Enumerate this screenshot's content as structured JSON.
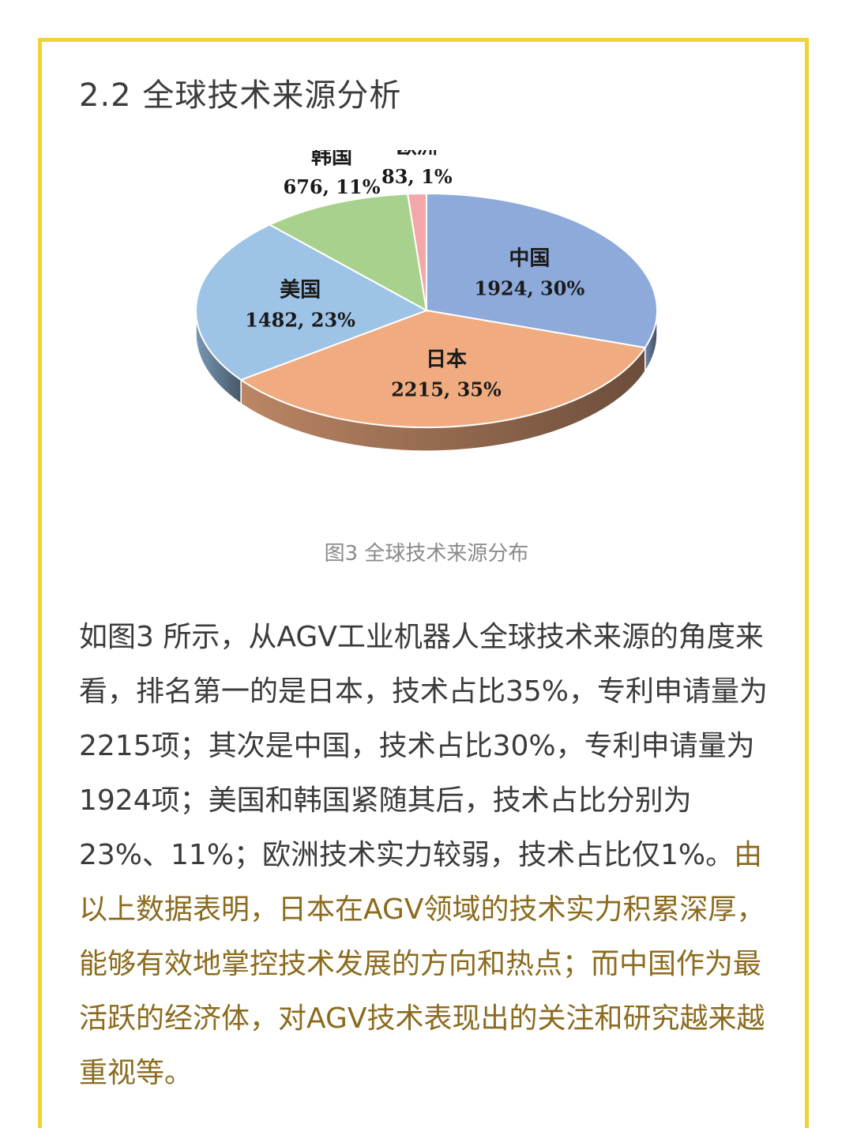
{
  "section": {
    "title": "2.2 全球技术来源分析"
  },
  "figure": {
    "caption": "图3  全球技术来源分布"
  },
  "body": {
    "plain_text": "如图3 所示，从AGV工业机器人全球技术来源的角度来看，排名第一的是日本，技术占比35%，专利申请量为2215项；其次是中国，技术占比30%，专利申请量为1924项；美国和韩国紧随其后，技术占比分别为23%、11%；欧洲技术实力较弱，技术占比仅1%。",
    "highlight_text": "由以上数据表明，日本在AGV领域的技术实力积累深厚，能够有效地掌控技术发展的方向和热点；而中国作为最活跃的经济体，对AGV技术表现出的关注和研究越来越重视等。"
  },
  "colors": {
    "frame_border": "#f2d335",
    "highlight": "#8c6b1f"
  },
  "chart_data": {
    "type": "pie",
    "title": "",
    "style": "3d",
    "slices": [
      {
        "name": "中国",
        "value": 1924,
        "percent": "30%",
        "label": "1924, 30%",
        "color": "#8eaadb"
      },
      {
        "name": "日本",
        "value": 2215,
        "percent": "35%",
        "label": "2215, 35%",
        "color": "#f0ac80"
      },
      {
        "name": "美国",
        "value": 1482,
        "percent": "23%",
        "label": "1482, 23%",
        "color": "#9dc3e6"
      },
      {
        "name": "韩国",
        "value": 676,
        "percent": "11%",
        "label": "676, 11%",
        "color": "#a9d18e"
      },
      {
        "name": "欧洲",
        "value": 83,
        "percent": "1%",
        "label": "83, 1%",
        "color": "#f4a7a9"
      }
    ]
  }
}
